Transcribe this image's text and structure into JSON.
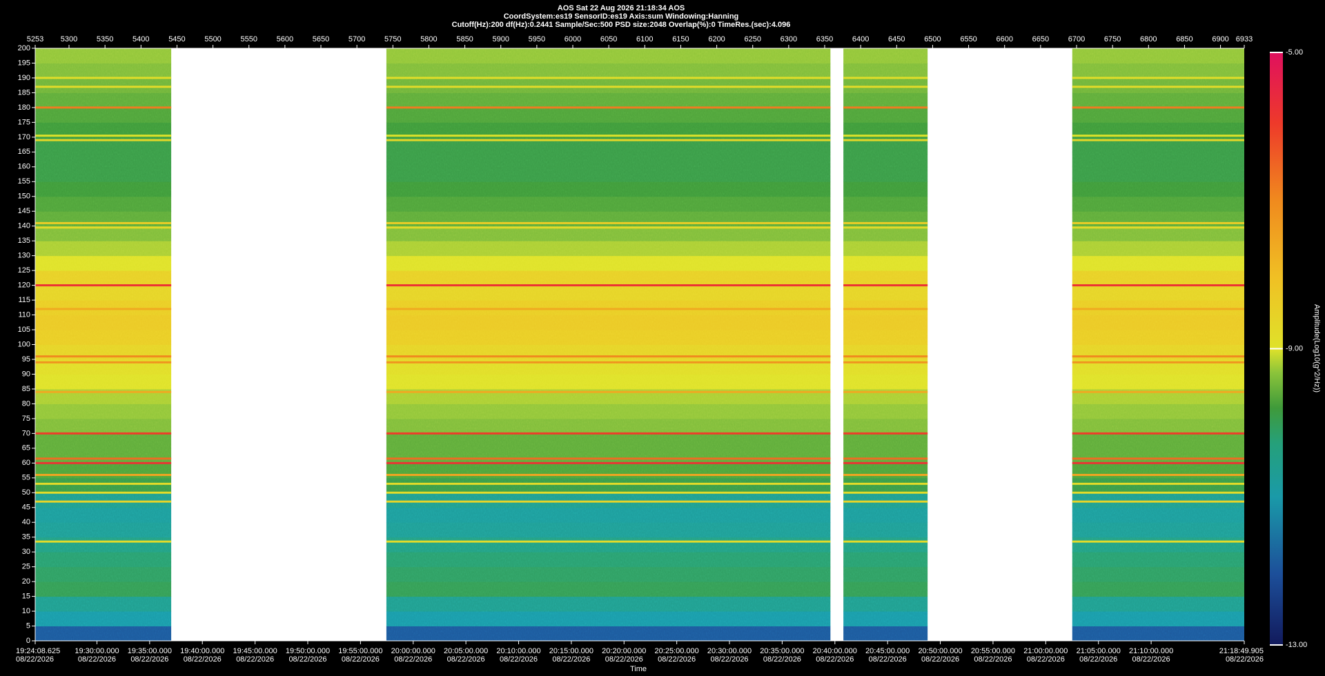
{
  "chart_data": {
    "type": "spectrogram",
    "title": "AOS  Sat 22 Aug 2026 21:18:34  AOS",
    "subtitle_lines": [
      "CoordSystem:es19    SensorID:es19     Axis:sum     Windowing:Hanning",
      "Cutoff(Hz):200      df(Hz):0.2441      Sample/Sec:500      PSD size:2048      Overlap(%):0      TimeRes.(sec):4.096"
    ],
    "x_label": "Time",
    "colorbar_label": "Amplitude(Log10(g^2/Hz))",
    "xlim": [
      5253,
      6933
    ],
    "xticks": [
      5253,
      5300,
      5350,
      5400,
      5450,
      5500,
      5550,
      5600,
      5650,
      5700,
      5750,
      5800,
      5850,
      5900,
      5950,
      6000,
      6050,
      6100,
      6150,
      6200,
      6250,
      6300,
      6350,
      6400,
      6450,
      6500,
      6550,
      6600,
      6650,
      6700,
      6750,
      6800,
      6850,
      6900,
      6933
    ],
    "time_ticks": [
      {
        "value": 5253,
        "label": "19:24:08.625"
      },
      {
        "value": 5338.79,
        "label": "19:30:00.000"
      },
      {
        "value": 5412.03,
        "label": "19:35:00.000"
      },
      {
        "value": 5485.27,
        "label": "19:40:00.000"
      },
      {
        "value": 5558.51,
        "label": "19:45:00.000"
      },
      {
        "value": 5631.75,
        "label": "19:50:00.000"
      },
      {
        "value": 5705.0,
        "label": "19:55:00.000"
      },
      {
        "value": 5778.24,
        "label": "20:00:00.000"
      },
      {
        "value": 5851.48,
        "label": "20:05:00.000"
      },
      {
        "value": 5924.72,
        "label": "20:10:00.000"
      },
      {
        "value": 5997.96,
        "label": "20:15:00.000"
      },
      {
        "value": 6071.21,
        "label": "20:20:00.000"
      },
      {
        "value": 6144.45,
        "label": "20:25:00.000"
      },
      {
        "value": 6217.69,
        "label": "20:30:00.000"
      },
      {
        "value": 6290.93,
        "label": "20:35:00.000"
      },
      {
        "value": 6364.18,
        "label": "20:40:00.000"
      },
      {
        "value": 6437.42,
        "label": "20:45:00.000"
      },
      {
        "value": 6510.66,
        "label": "20:50:00.000"
      },
      {
        "value": 6583.9,
        "label": "20:55:00.000"
      },
      {
        "value": 6657.14,
        "label": "21:00:00.000"
      },
      {
        "value": 6730.39,
        "label": "21:05:00.000"
      },
      {
        "value": 6803.63,
        "label": "21:10:00.000"
      },
      {
        "value": 6933,
        "label": "21:18:49.905"
      }
    ],
    "time_tick_dates": [
      "08/22/2026",
      "08/22/2026",
      "08/22/2026",
      "08/22/2026",
      "08/22/2026",
      "08/22/2026",
      "08/22/2026",
      "08/22/2026",
      "08/22/2026",
      "08/22/2026",
      "08/22/2026",
      "08/22/2026",
      "08/22/2026",
      "08/22/2026",
      "08/22/2026",
      "08/22/2026",
      "08/22/2026",
      "08/22/2026",
      "08/22/2026",
      "08/22/2026",
      "08/22/2026",
      "08/22/2026",
      "08/22/2026"
    ],
    "ylim": [
      0,
      200
    ],
    "yticks": [
      0,
      5,
      10,
      15,
      20,
      25,
      30,
      35,
      40,
      45,
      50,
      55,
      60,
      65,
      70,
      75,
      80,
      85,
      90,
      95,
      100,
      105,
      110,
      115,
      120,
      125,
      130,
      135,
      140,
      145,
      150,
      155,
      160,
      165,
      170,
      175,
      180,
      185,
      190,
      195,
      200
    ],
    "clim": [
      -13,
      -5
    ],
    "cticks": [
      {
        "value": -5,
        "label": "-5.00"
      },
      {
        "value": -9,
        "label": "-9.00"
      },
      {
        "value": -13,
        "label": "-13.00"
      }
    ],
    "segments": [
      [
        5253,
        5442
      ],
      [
        5741,
        6358
      ],
      [
        6376,
        6493
      ],
      [
        6694,
        6933
      ]
    ],
    "band_width": 5,
    "band_levels": [
      -11.9,
      -11.0,
      -10.6,
      -10.0,
      -10.1,
      -10.2,
      -10.4,
      -10.7,
      -10.8,
      -10.6,
      -9.9,
      -9.7,
      -9.6,
      -9.6,
      -9.4,
      -9.3,
      -9.2,
      -9.0,
      -8.9,
      -8.6,
      -8.4,
      -8.3,
      -8.4,
      -8.6,
      -8.5,
      -9.0,
      -9.2,
      -9.4,
      -9.6,
      -9.7,
      -9.8,
      -9.9,
      -9.9,
      -9.9,
      -9.8,
      -9.7,
      -9.6,
      -9.5,
      -9.4,
      -9.3
    ],
    "tones": [
      {
        "freq": 33.5,
        "level": -8.8
      },
      {
        "freq": 47,
        "level": -8.6
      },
      {
        "freq": 50,
        "level": -8.8
      },
      {
        "freq": 53,
        "level": -8.8
      },
      {
        "freq": 56,
        "level": -7.5
      },
      {
        "freq": 60,
        "level": -5.8
      },
      {
        "freq": 61.5,
        "level": -6.6
      },
      {
        "freq": 70,
        "level": -6.0
      },
      {
        "freq": 84,
        "level": -7.6
      },
      {
        "freq": 94,
        "level": -7.2
      },
      {
        "freq": 96,
        "level": -7.0
      },
      {
        "freq": 112,
        "level": -7.6
      },
      {
        "freq": 120,
        "level": -5.8
      },
      {
        "freq": 139.5,
        "level": -8.8
      },
      {
        "freq": 141,
        "level": -8.4
      },
      {
        "freq": 169,
        "level": -8.7
      },
      {
        "freq": 170.5,
        "level": -9.0
      },
      {
        "freq": 180,
        "level": -6.8
      },
      {
        "freq": 187,
        "level": -8.8
      },
      {
        "freq": 190,
        "level": -8.9
      }
    ]
  }
}
